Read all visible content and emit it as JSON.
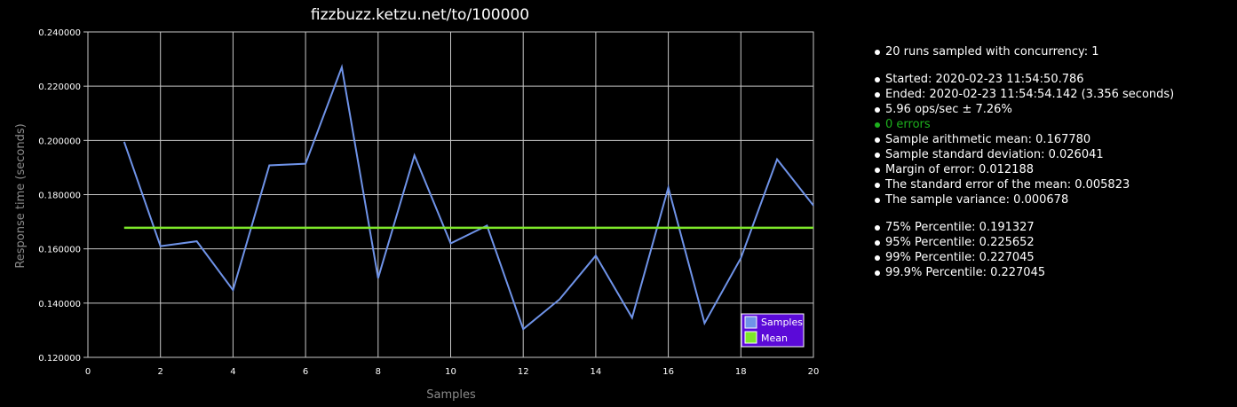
{
  "chart_data": {
    "type": "line",
    "title": "fizzbuzz.ketzu.net/to/100000",
    "xlabel": "Samples",
    "ylabel": "Response time (seconds)",
    "xlim": [
      0,
      20
    ],
    "ylim": [
      0.12,
      0.24
    ],
    "x_ticks": [
      0,
      2,
      4,
      6,
      8,
      10,
      12,
      14,
      16,
      18,
      20
    ],
    "y_ticks": [
      0.12,
      0.14,
      0.16,
      0.18,
      0.2,
      0.22,
      0.24
    ],
    "y_tick_labels": [
      "0.120000",
      "0.140000",
      "0.160000",
      "0.180000",
      "0.200000",
      "0.220000",
      "0.240000"
    ],
    "grid": true,
    "legend_position": "bottom-right",
    "series": [
      {
        "name": "Samples",
        "color": "#6f93e8",
        "x": [
          1,
          2,
          3,
          4,
          5,
          6,
          7,
          8,
          9,
          10,
          11,
          12,
          13,
          14,
          15,
          16,
          17,
          18,
          19,
          20
        ],
        "values": [
          0.1995,
          0.161,
          0.1628,
          0.1448,
          0.1908,
          0.1914,
          0.227,
          0.1492,
          0.1945,
          0.162,
          0.1686,
          0.1304,
          0.1414,
          0.1575,
          0.1346,
          0.1826,
          0.1326,
          0.1566,
          0.193,
          0.176
        ]
      },
      {
        "name": "Mean",
        "color": "#7ee82a",
        "x": [
          1,
          20
        ],
        "values": [
          0.16778,
          0.16778
        ]
      }
    ]
  },
  "colors": {
    "background": "#000000",
    "grid": "#c8c8c8",
    "legend_background": "#5b0ad8",
    "success_text": "#1db01d"
  },
  "stats": {
    "groups": [
      [
        "20 runs sampled with concurrency: 1"
      ],
      [
        "Started: 2020-02-23 11:54:50.786",
        "Ended: 2020-02-23 11:54:54.142 (3.356 seconds)",
        "5.96 ops/sec ± 7.26%",
        "0 errors",
        "Sample arithmetic mean: 0.167780",
        "Sample standard deviation: 0.026041",
        "Margin of error: 0.012188",
        "The standard error of the mean: 0.005823",
        "The sample variance: 0.000678"
      ],
      [
        "75% Percentile: 0.191327",
        "95% Percentile: 0.225652",
        "99% Percentile: 0.227045",
        "99.9% Percentile: 0.227045"
      ]
    ],
    "success_item": "0 errors"
  }
}
